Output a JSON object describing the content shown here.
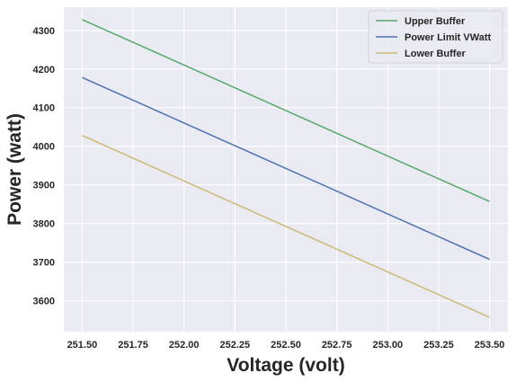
{
  "chart_data": {
    "type": "line",
    "title": "",
    "xlabel": "Voltage (volt)",
    "ylabel": "Power (watt)",
    "xlim": [
      251.41,
      253.59
    ],
    "ylim": [
      3520,
      4360
    ],
    "xticks": [
      251.5,
      251.75,
      252.0,
      252.25,
      252.5,
      252.75,
      253.0,
      253.25,
      253.5
    ],
    "xtick_labels": [
      "251.50",
      "251.75",
      "252.00",
      "252.25",
      "252.50",
      "252.75",
      "253.00",
      "253.25",
      "253.50"
    ],
    "yticks": [
      3600,
      3700,
      3800,
      3900,
      4000,
      4100,
      4200,
      4300
    ],
    "ytick_labels": [
      "3600",
      "3700",
      "3800",
      "3900",
      "4000",
      "4100",
      "4200",
      "4300"
    ],
    "grid": true,
    "legend_position": "top-right",
    "background": "#eaeaf2",
    "series": [
      {
        "name": "Upper Buffer",
        "color": "#55a868",
        "x": [
          251.5,
          253.5
        ],
        "y": [
          4328,
          3857
        ]
      },
      {
        "name": "Power Limit VWatt",
        "color": "#4c72b0",
        "x": [
          251.5,
          253.5
        ],
        "y": [
          4178,
          3707
        ]
      },
      {
        "name": "Lower Buffer",
        "color": "#ccb974",
        "x": [
          251.5,
          253.5
        ],
        "y": [
          4028,
          3557
        ]
      }
    ]
  }
}
